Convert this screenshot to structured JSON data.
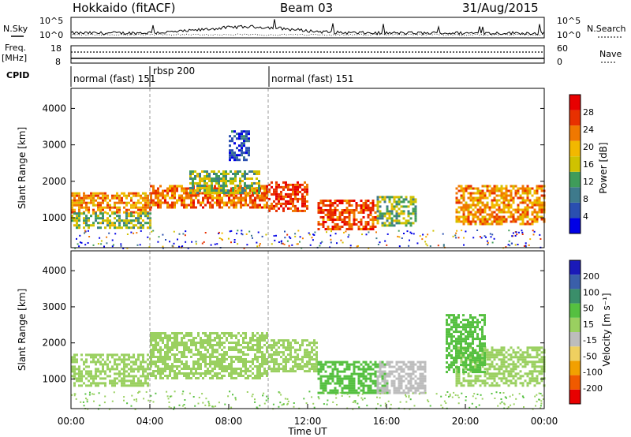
{
  "header": {
    "station": "Hokkaido (fitACF)",
    "beam": "Beam 03",
    "date": "31/Aug/2015"
  },
  "top_panels": {
    "left_labels": {
      "nsky": "N.Sky",
      "freq1": "Freq.",
      "freq2": "[MHz]",
      "cpid": "CPID"
    },
    "right_labels": {
      "nsearch": "N.Search",
      "nave": "Nave"
    },
    "nsky_ticks": [
      "10^5",
      "10^0"
    ],
    "nsearch_ticks": [
      "10^5",
      "10^0"
    ],
    "freq_ticks": [
      "18",
      "8"
    ],
    "nave_ticks": [
      "60",
      "0"
    ]
  },
  "cpid": {
    "segments": [
      "normal (fast) 151",
      "rbsp 200",
      "normal (fast) 151"
    ]
  },
  "colors": {
    "power": [
      "#0000e6",
      "#2a4fb0",
      "#3e7a8c",
      "#3f9c5a",
      "#cfc200",
      "#f2b800",
      "#f07800",
      "#e83000",
      "#e80000"
    ],
    "velocity": [
      "#e80000",
      "#f05a00",
      "#f2a000",
      "#efd060",
      "#bdbdbd",
      "#9ad060",
      "#55c040",
      "#3a8e6a",
      "#3a5faa",
      "#1a1ab8"
    ]
  },
  "chart_data": [
    {
      "type": "heatmap",
      "quantity": "Power",
      "ylabel": "Slant Range [km]",
      "ylim": [
        180,
        4550
      ],
      "yticks": [
        "1000",
        "2000",
        "3000",
        "4000"
      ],
      "colorbar_label": "Power [dB]",
      "colorbar_ticks": [
        "4",
        "8",
        "12",
        "16",
        "20",
        "24",
        "28"
      ],
      "colorbar_range": [
        0,
        32
      ],
      "regions": [
        {
          "t0": 0.0,
          "t1": 4.0,
          "r0": 1150,
          "r1": 1700,
          "v": 22
        },
        {
          "t0": 0.0,
          "t1": 4.0,
          "r0": 700,
          "r1": 1150,
          "v": 14
        },
        {
          "t0": 4.0,
          "t1": 10.0,
          "r0": 1300,
          "r1": 1900,
          "v": 24
        },
        {
          "t0": 6.0,
          "t1": 9.5,
          "r0": 1700,
          "r1": 2300,
          "v": 14
        },
        {
          "t0": 10.0,
          "t1": 12.0,
          "r0": 1200,
          "r1": 2000,
          "v": 27
        },
        {
          "t0": 12.5,
          "t1": 15.5,
          "r0": 700,
          "r1": 1500,
          "v": 26
        },
        {
          "t0": 15.5,
          "t1": 17.5,
          "r0": 800,
          "r1": 1600,
          "v": 14
        },
        {
          "t0": 19.5,
          "t1": 24.0,
          "r0": 800,
          "r1": 1900,
          "v": 22
        },
        {
          "t0": 8.0,
          "t1": 9.0,
          "r0": 2600,
          "r1": 3400,
          "v": 6
        }
      ]
    },
    {
      "type": "heatmap",
      "quantity": "Velocity",
      "ylabel": "Slant Range [km]",
      "ylim": [
        180,
        4550
      ],
      "yticks": [
        "1000",
        "2000",
        "3000",
        "4000"
      ],
      "colorbar_label": "Velocity [m s⁻¹]",
      "colorbar_ticks": [
        "-200",
        "-100",
        "-50",
        "-15",
        "15",
        "50",
        "100",
        "200"
      ],
      "regions": [
        {
          "t0": 0.0,
          "t1": 4.0,
          "r0": 800,
          "r1": 1700,
          "v": 0
        },
        {
          "t0": 4.0,
          "t1": 10.0,
          "r0": 1000,
          "r1": 2300,
          "v": 0
        },
        {
          "t0": 10.0,
          "t1": 12.5,
          "r0": 1200,
          "r1": 2100,
          "v": 0
        },
        {
          "t0": 12.5,
          "t1": 16.0,
          "r0": 600,
          "r1": 1500,
          "v": 40
        },
        {
          "t0": 15.5,
          "t1": 18.0,
          "r0": 600,
          "r1": 1500,
          "v": -40
        },
        {
          "t0": 19.5,
          "t1": 24.0,
          "r0": 800,
          "r1": 1900,
          "v": 0
        },
        {
          "t0": 19.0,
          "t1": 21.0,
          "r0": 1200,
          "r1": 2800,
          "v": 40
        }
      ]
    }
  ],
  "xaxis": {
    "ticks": [
      "00:00",
      "04:00",
      "08:00",
      "12:00",
      "16:00",
      "20:00",
      "00:00"
    ],
    "label": "Time UT"
  }
}
